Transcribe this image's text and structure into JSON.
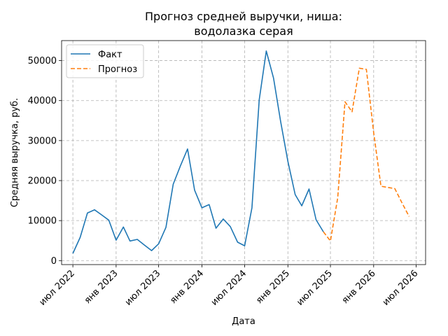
{
  "chart_data": {
    "type": "line",
    "title_line1": "Прогноз средней выручки, ниша:",
    "title_line2": "водолазка серая",
    "xlabel": "Дата",
    "ylabel": "Средняя выручка, руб.",
    "ylim": [
      -1000,
      55000
    ],
    "xlim": [
      "2022-05-14",
      "2026-08-10"
    ],
    "grid": true,
    "legend_position": "top-left",
    "yticks": [
      0,
      10000,
      20000,
      30000,
      40000,
      50000
    ],
    "ytick_labels": [
      "0",
      "10000",
      "20000",
      "30000",
      "40000",
      "50000"
    ],
    "xticks": [
      "2022-07-01",
      "2023-01-01",
      "2023-07-01",
      "2024-01-01",
      "2024-07-01",
      "2025-01-01",
      "2025-07-01",
      "2026-01-01",
      "2026-07-01"
    ],
    "xtick_labels": [
      "июл 2022",
      "янв 2023",
      "июл 2023",
      "янв 2024",
      "июл 2024",
      "янв 2025",
      "июл 2025",
      "янв 2026",
      "июл 2026"
    ],
    "series": [
      {
        "name": "Факт",
        "color": "#1f77b4",
        "style": "solid",
        "x": [
          "2022-07-01",
          "2022-08-01",
          "2022-09-01",
          "2022-10-01",
          "2022-11-01",
          "2022-12-01",
          "2023-01-01",
          "2023-02-01",
          "2023-03-01",
          "2023-04-01",
          "2023-05-01",
          "2023-06-01",
          "2023-07-01",
          "2023-08-01",
          "2023-09-01",
          "2023-10-01",
          "2023-11-01",
          "2023-12-01",
          "2024-01-01",
          "2024-02-01",
          "2024-03-01",
          "2024-04-01",
          "2024-05-01",
          "2024-06-01",
          "2024-07-01",
          "2024-08-01",
          "2024-09-01",
          "2024-10-01",
          "2024-11-01",
          "2024-12-01",
          "2025-01-01",
          "2025-02-01",
          "2025-03-01",
          "2025-04-01",
          "2025-05-01",
          "2025-06-01"
        ],
        "y": [
          1800,
          5800,
          11900,
          12700,
          11400,
          10100,
          5100,
          8400,
          4900,
          5300,
          3900,
          2500,
          4200,
          8300,
          19100,
          23600,
          27900,
          17600,
          13200,
          14000,
          8100,
          10400,
          8500,
          4600,
          3700,
          13200,
          40200,
          52400,
          45600,
          34800,
          24800,
          16500,
          13700,
          17900,
          10200,
          7200
        ]
      },
      {
        "name": "Прогноз",
        "color": "#ff7f0e",
        "style": "dashed",
        "x": [
          "2025-06-01",
          "2025-07-01",
          "2025-08-01",
          "2025-09-01",
          "2025-10-01",
          "2025-11-01",
          "2025-12-01",
          "2026-01-01",
          "2026-02-01",
          "2026-03-01",
          "2026-04-01",
          "2026-05-01",
          "2026-06-01"
        ],
        "y": [
          7200,
          4900,
          15700,
          39700,
          37200,
          48100,
          47800,
          32000,
          18600,
          18300,
          18000,
          14500,
          11000
        ]
      }
    ]
  }
}
